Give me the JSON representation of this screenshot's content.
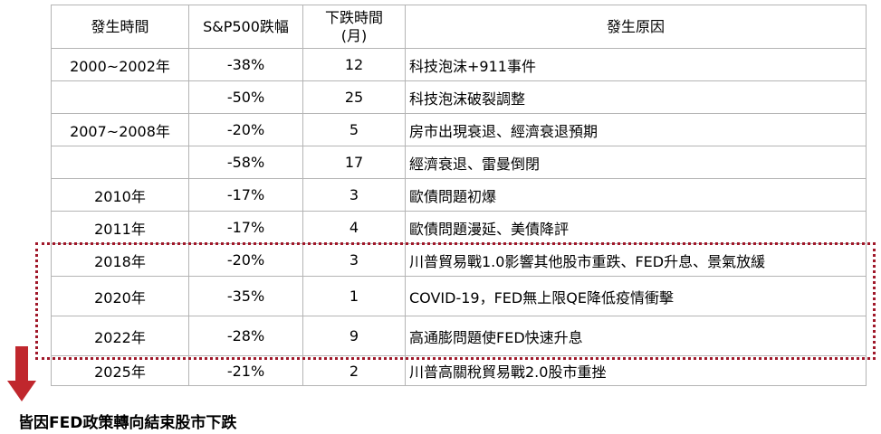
{
  "table": {
    "headers": {
      "period": "發生時間",
      "drop": "S&P500跌幅",
      "duration": "下跌時間\n(月)",
      "reason": "發生原因"
    },
    "rows": [
      {
        "period": "2000~2002年",
        "drop": "-38%",
        "months": "12",
        "reason": "科技泡沫+911事件"
      },
      {
        "period": "",
        "drop": "-50%",
        "months": "25",
        "reason": "科技泡沫破裂調整"
      },
      {
        "period": "2007~2008年",
        "drop": "-20%",
        "months": "5",
        "reason": "房市出現衰退、經濟衰退預期"
      },
      {
        "period": "",
        "drop": "-58%",
        "months": "17",
        "reason": "經濟衰退、雷曼倒閉"
      },
      {
        "period": "2010年",
        "drop": "-17%",
        "months": "3",
        "reason": "歐債問題初爆"
      },
      {
        "period": "2011年",
        "drop": "-17%",
        "months": "4",
        "reason": "歐債問題漫延、美債降評"
      },
      {
        "period": "2018年",
        "drop": "-20%",
        "months": "3",
        "reason": "川普貿易戰1.0影響其他股市重跌、FED升息、景氣放緩"
      },
      {
        "period": "2020年",
        "drop": "-35%",
        "months": "1",
        "reason": "COVID-19，FED無上限QE降低疫情衝擊"
      },
      {
        "period": "2022年",
        "drop": "-28%",
        "months": "9",
        "reason": "高通膨問題使FED快速升息"
      },
      {
        "period": "2025年",
        "drop": "-21%",
        "months": "2",
        "reason": "川普高關稅貿易戰2.0股市重挫"
      }
    ]
  },
  "annotation": {
    "footnote": "皆因FED政策轉向結束股市下跌",
    "highlight_color": "#a0182a",
    "arrow_color": "#c0272d",
    "highlighted_years": [
      "2018年",
      "2020年",
      "2022年"
    ]
  }
}
